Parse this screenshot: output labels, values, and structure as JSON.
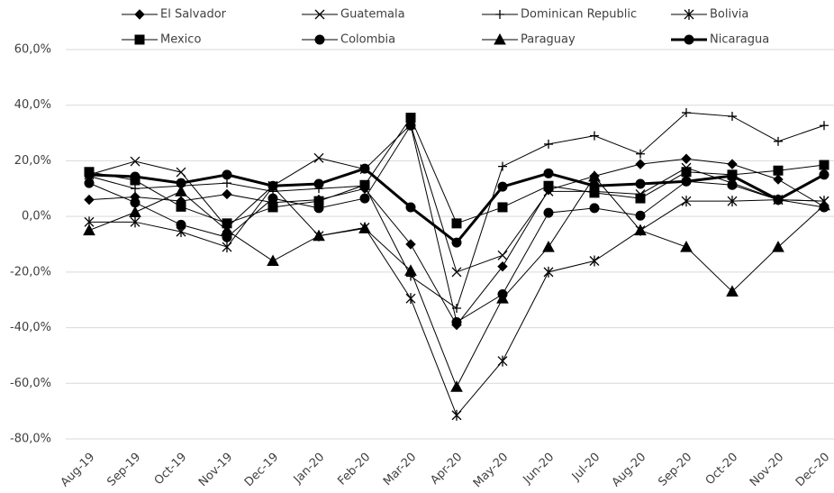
{
  "chart_data": {
    "type": "line",
    "categories": [
      "Aug-19",
      "Sep-19",
      "Oct-19",
      "Nov-19",
      "Dec-19",
      "Jan-20",
      "Feb-20",
      "Mar-20",
      "Apr-20",
      "May-20",
      "Jun-20",
      "Jul-20",
      "Aug-20",
      "Sep-20",
      "Oct-20",
      "Nov-20",
      "Dec-20"
    ],
    "series": [
      {
        "name": "El Salvador",
        "color": "#000000",
        "marker": "diamond",
        "line_width": 1,
        "values": [
          6,
          7,
          5.5,
          8,
          5,
          6,
          10,
          -10,
          -39,
          -18,
          9.5,
          14.5,
          18.8,
          20.7,
          18.8,
          13.3,
          3.5
        ]
      },
      {
        "name": "Guatemala",
        "color": "#000000",
        "marker": "x",
        "line_width": 1,
        "values": [
          15,
          19.8,
          15.9,
          -4,
          11,
          21,
          17,
          33,
          -20,
          -14,
          9,
          9,
          8,
          17.5,
          12,
          6,
          5.5
        ]
      },
      {
        "name": "Dominican Republic",
        "color": "#000000",
        "marker": "plus",
        "line_width": 1,
        "values": [
          14.5,
          10,
          11,
          12,
          9,
          10,
          11,
          -21.5,
          -33,
          18,
          26,
          29,
          22.5,
          37.3,
          36,
          27,
          32.7
        ]
      },
      {
        "name": "Bolivia",
        "color": "#000000",
        "marker": "star",
        "line_width": 1,
        "values": [
          -2,
          -2,
          -5.5,
          -11,
          10.7,
          -7,
          -4,
          -29.5,
          -71.5,
          -52,
          -20,
          -16,
          -5,
          5.5,
          5.5,
          6,
          5.5
        ]
      },
      {
        "name": "Mexico",
        "color": "#000000",
        "marker": "square",
        "line_width": 1,
        "values": [
          16,
          13,
          3.5,
          -2.5,
          3.3,
          5.5,
          11.3,
          35.5,
          -2.5,
          3.3,
          11,
          8.5,
          6.5,
          16,
          15,
          16.5,
          18.5
        ]
      },
      {
        "name": "Colombia",
        "color": "#000000",
        "marker": "circle",
        "line_width": 1,
        "values": [
          12,
          5,
          -3,
          -7.5,
          6.5,
          3,
          6.5,
          32.7,
          -38,
          -28,
          1.3,
          3,
          0.3,
          12.6,
          11.3,
          6,
          3.3
        ]
      },
      {
        "name": "Paraguay",
        "color": "#000000",
        "marker": "triangle",
        "line_width": 1,
        "values": [
          -5,
          1.5,
          9,
          -5,
          -16,
          -7,
          -4.3,
          -19.5,
          -61.3,
          -29.5,
          -11,
          14.3,
          -5,
          -11,
          -27,
          -11,
          4
        ]
      },
      {
        "name": "Nicaragua",
        "color": "#000000",
        "marker": "circle",
        "line_width": 3,
        "values": [
          15,
          14.3,
          12,
          15,
          11,
          11.7,
          17.2,
          3.3,
          -9.4,
          10.7,
          15.5,
          11,
          11.7,
          12.6,
          14.6,
          6,
          15
        ]
      }
    ],
    "ylim": [
      -80,
      60
    ],
    "yticks": [
      {
        "value": -80,
        "label": "-80,0%"
      },
      {
        "value": -60,
        "label": "-60,0%"
      },
      {
        "value": -40,
        "label": "-40,0%"
      },
      {
        "value": -20,
        "label": "-20,0%"
      },
      {
        "value": 0,
        "label": "0,0%"
      },
      {
        "value": 20,
        "label": "20,0%"
      },
      {
        "value": 40,
        "label": "40,0%"
      },
      {
        "value": 60,
        "label": "60,0%"
      }
    ],
    "grid": true,
    "legend": "top"
  }
}
